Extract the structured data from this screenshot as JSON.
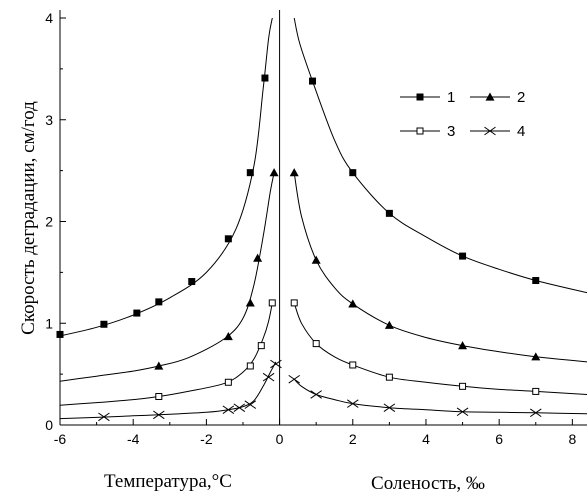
{
  "chart_data": {
    "type": "line",
    "xlabel_left": "Температура,°C",
    "xlabel_right": "Соленость, ‰",
    "ylabel": "Скорость деградации, см/год",
    "xlim": [
      -6,
      8.4
    ],
    "ylim": [
      0,
      4
    ],
    "x_ticks": [
      -6,
      -4,
      -2,
      0,
      2,
      4,
      6,
      8
    ],
    "y_ticks": [
      0,
      1,
      2,
      3,
      4
    ],
    "grid": false,
    "legend_position": "top-right",
    "series": [
      {
        "name": "1",
        "marker": "filled-square",
        "points": [
          [
            -6.0,
            0.89
          ],
          [
            -4.8,
            0.99
          ],
          [
            -3.9,
            1.1
          ],
          [
            -3.3,
            1.21
          ],
          [
            -2.4,
            1.41
          ],
          [
            -1.4,
            1.83
          ],
          [
            -0.8,
            2.48
          ],
          [
            -0.4,
            3.41
          ],
          [
            0.9,
            3.38
          ],
          [
            2.0,
            2.48
          ],
          [
            3.0,
            2.08
          ],
          [
            5.0,
            1.66
          ],
          [
            7.0,
            1.42
          ]
        ],
        "curve_left": [
          [
            -6.2,
            0.86
          ],
          [
            -5,
            0.96
          ],
          [
            -4,
            1.08
          ],
          [
            -3,
            1.25
          ],
          [
            -2,
            1.5
          ],
          [
            -1.2,
            1.92
          ],
          [
            -0.7,
            2.55
          ],
          [
            -0.45,
            3.3
          ],
          [
            -0.3,
            3.8
          ],
          [
            -0.2,
            4.0
          ]
        ],
        "curve_right": [
          [
            0.4,
            4.0
          ],
          [
            0.55,
            3.75
          ],
          [
            0.9,
            3.38
          ],
          [
            1.5,
            2.8
          ],
          [
            2,
            2.48
          ],
          [
            3,
            2.08
          ],
          [
            4,
            1.85
          ],
          [
            5,
            1.66
          ],
          [
            6,
            1.53
          ],
          [
            7,
            1.42
          ],
          [
            8.4,
            1.3
          ]
        ]
      },
      {
        "name": "2",
        "marker": "filled-triangle",
        "points": [
          [
            -3.3,
            0.58
          ],
          [
            -1.4,
            0.87
          ],
          [
            -0.8,
            1.2
          ],
          [
            -0.6,
            1.64
          ],
          [
            -0.15,
            2.48
          ],
          [
            0.4,
            2.48
          ],
          [
            1.0,
            1.62
          ],
          [
            2.0,
            1.19
          ],
          [
            3.0,
            0.98
          ],
          [
            5.0,
            0.78
          ],
          [
            7.0,
            0.67
          ]
        ],
        "curve_left": [
          [
            -6.2,
            0.42
          ],
          [
            -5,
            0.48
          ],
          [
            -4,
            0.53
          ],
          [
            -3.3,
            0.58
          ],
          [
            -2.5,
            0.66
          ],
          [
            -1.5,
            0.85
          ],
          [
            -1,
            1.05
          ],
          [
            -0.7,
            1.38
          ],
          [
            -0.45,
            1.85
          ],
          [
            -0.25,
            2.3
          ],
          [
            -0.15,
            2.48
          ]
        ],
        "curve_right": [
          [
            0.4,
            2.48
          ],
          [
            0.6,
            2.05
          ],
          [
            1,
            1.62
          ],
          [
            1.5,
            1.35
          ],
          [
            2,
            1.19
          ],
          [
            3,
            0.98
          ],
          [
            4,
            0.86
          ],
          [
            5,
            0.78
          ],
          [
            6,
            0.72
          ],
          [
            7,
            0.67
          ],
          [
            8.4,
            0.62
          ]
        ]
      },
      {
        "name": "3",
        "marker": "open-square",
        "points": [
          [
            -3.3,
            0.28
          ],
          [
            -1.4,
            0.42
          ],
          [
            -0.8,
            0.58
          ],
          [
            -0.5,
            0.78
          ],
          [
            -0.2,
            1.2
          ],
          [
            0.4,
            1.2
          ],
          [
            1.0,
            0.8
          ],
          [
            2.0,
            0.59
          ],
          [
            3.0,
            0.47
          ],
          [
            5.0,
            0.38
          ],
          [
            7.0,
            0.33
          ]
        ],
        "curve_left": [
          [
            -6.2,
            0.19
          ],
          [
            -5,
            0.22
          ],
          [
            -4,
            0.25
          ],
          [
            -3.3,
            0.28
          ],
          [
            -2.5,
            0.33
          ],
          [
            -1.5,
            0.41
          ],
          [
            -1,
            0.52
          ],
          [
            -0.7,
            0.65
          ],
          [
            -0.45,
            0.85
          ],
          [
            -0.3,
            1.02
          ],
          [
            -0.2,
            1.2
          ]
        ],
        "curve_right": [
          [
            0.4,
            1.2
          ],
          [
            0.6,
            1.0
          ],
          [
            1,
            0.8
          ],
          [
            1.5,
            0.67
          ],
          [
            2,
            0.59
          ],
          [
            3,
            0.47
          ],
          [
            4,
            0.42
          ],
          [
            5,
            0.38
          ],
          [
            6,
            0.35
          ],
          [
            7,
            0.33
          ],
          [
            8.4,
            0.3
          ]
        ]
      },
      {
        "name": "4",
        "marker": "x",
        "points": [
          [
            -4.8,
            0.08
          ],
          [
            -3.3,
            0.1
          ],
          [
            -1.4,
            0.15
          ],
          [
            -1.1,
            0.17
          ],
          [
            -0.8,
            0.2
          ],
          [
            -0.3,
            0.47
          ],
          [
            -0.1,
            0.6
          ],
          [
            0.4,
            0.45
          ],
          [
            1.0,
            0.3
          ],
          [
            2.0,
            0.21
          ],
          [
            3.0,
            0.17
          ],
          [
            5.0,
            0.13
          ],
          [
            7.0,
            0.12
          ]
        ],
        "curve_left": [
          [
            -6.2,
            0.06
          ],
          [
            -5,
            0.075
          ],
          [
            -4,
            0.09
          ],
          [
            -3,
            0.105
          ],
          [
            -2,
            0.125
          ],
          [
            -1.4,
            0.15
          ],
          [
            -1,
            0.18
          ],
          [
            -0.7,
            0.24
          ],
          [
            -0.45,
            0.38
          ],
          [
            -0.25,
            0.52
          ],
          [
            -0.1,
            0.62
          ]
        ],
        "curve_right": [
          [
            0.4,
            0.45
          ],
          [
            0.6,
            0.38
          ],
          [
            1,
            0.3
          ],
          [
            1.5,
            0.25
          ],
          [
            2,
            0.21
          ],
          [
            3,
            0.17
          ],
          [
            4,
            0.15
          ],
          [
            5,
            0.13
          ],
          [
            6,
            0.125
          ],
          [
            7,
            0.12
          ],
          [
            8.4,
            0.11
          ]
        ]
      }
    ]
  }
}
